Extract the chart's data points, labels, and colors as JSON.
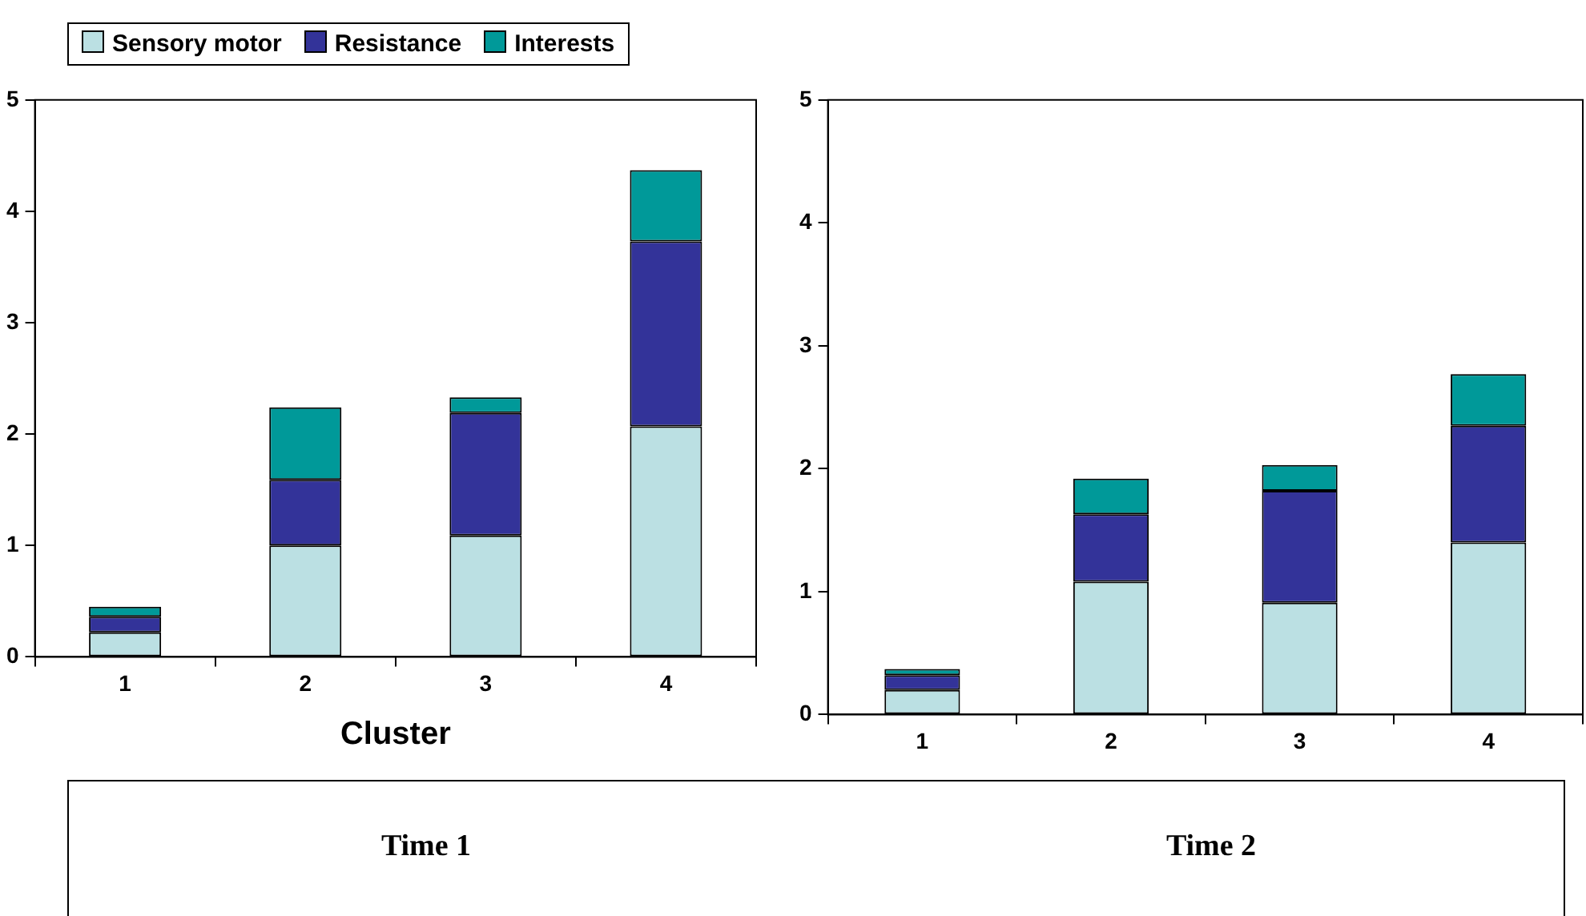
{
  "chart_data": [
    {
      "type": "bar",
      "title": "Time 1",
      "xlabel": "Cluster",
      "categories": [
        "1",
        "2",
        "3",
        "4"
      ],
      "stacked": true,
      "legend": "top left",
      "grid": false,
      "ylim": [
        0,
        5
      ],
      "yticks": [
        0,
        1,
        2,
        3,
        4,
        5
      ],
      "series": [
        {
          "name": "Sensory motor",
          "color": "#bbe0e3",
          "values": [
            0.22,
            1.0,
            1.09,
            2.07
          ]
        },
        {
          "name": "Resistance",
          "color": "#333399",
          "values": [
            0.14,
            0.59,
            1.1,
            1.66
          ]
        },
        {
          "name": "Interests",
          "color": "#009999",
          "values": [
            0.09,
            0.65,
            0.14,
            0.64
          ]
        }
      ]
    },
    {
      "type": "bar",
      "title": "Time 2",
      "categories": [
        "1",
        "2",
        "3",
        "4"
      ],
      "stacked": true,
      "legend": false,
      "grid": false,
      "ylim": [
        0,
        5
      ],
      "yticks": [
        0,
        1,
        2,
        3,
        4,
        5
      ],
      "series": [
        {
          "color": "#bbe0e3",
          "values": [
            0.2,
            1.08,
            0.91,
            1.4
          ]
        },
        {
          "color": "#333399",
          "values": [
            0.12,
            0.55,
            0.91,
            0.95
          ]
        },
        {
          "color": "#009999",
          "values": [
            0.05,
            0.29,
            0.21,
            0.42
          ]
        }
      ]
    }
  ]
}
